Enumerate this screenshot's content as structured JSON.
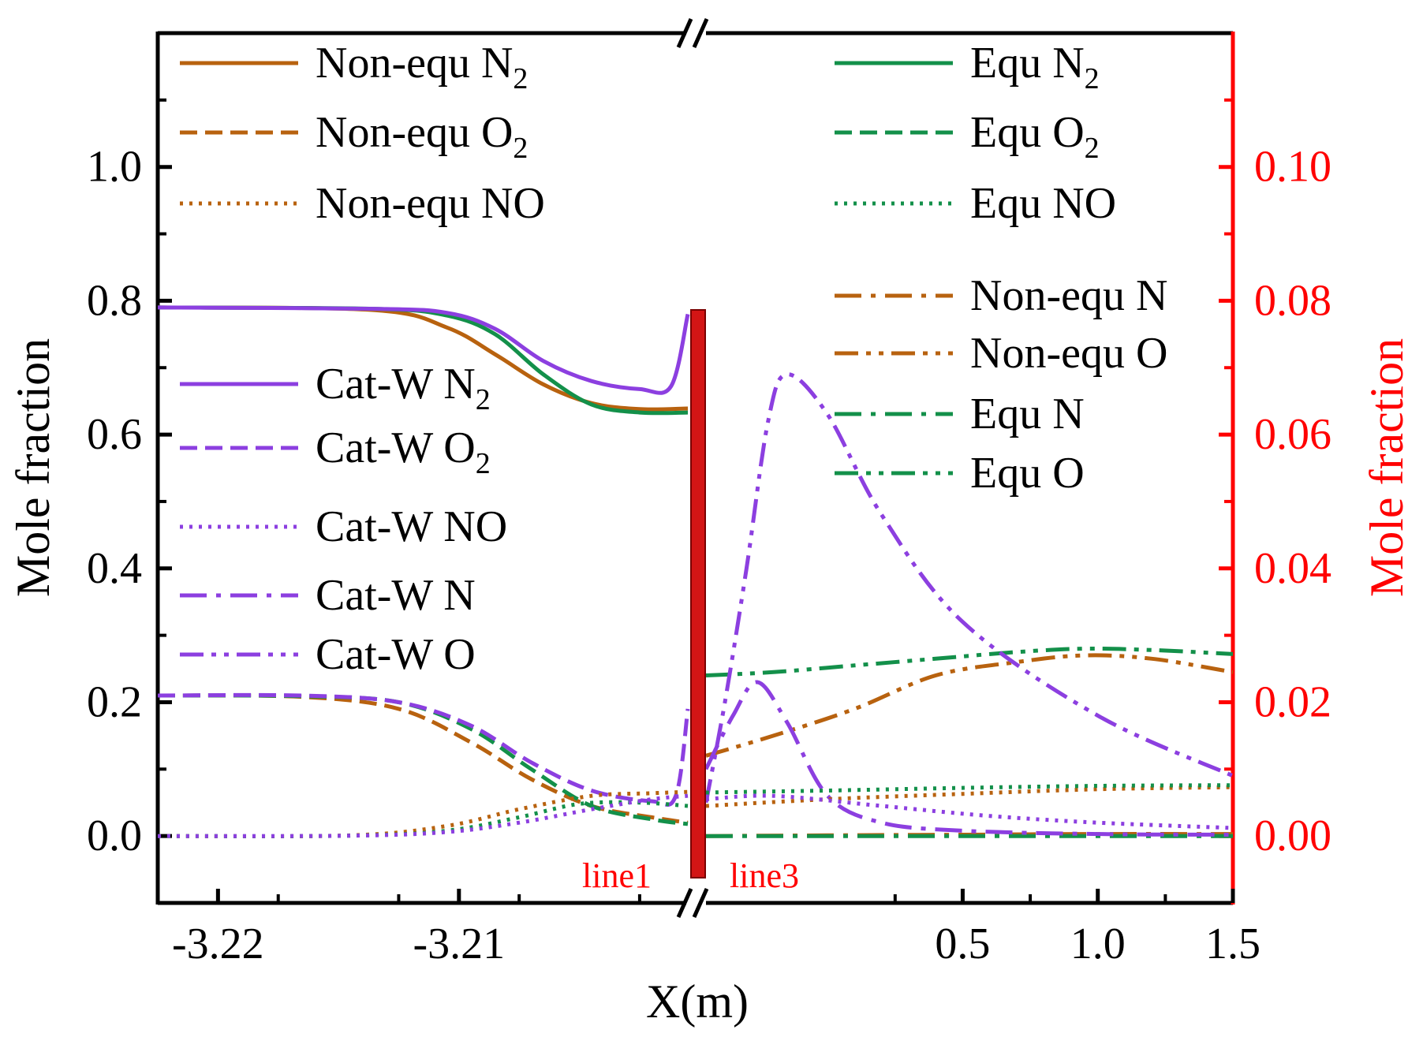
{
  "chart_data": {
    "type": "line",
    "ylabel": "Mole fraction",
    "ylabel_right": "Mole fraction",
    "xlabel": "X(m)",
    "yticks_left": [
      "0.0",
      "0.2",
      "0.4",
      "0.6",
      "0.8",
      "1.0"
    ],
    "yticks_right": [
      "0.00",
      "0.02",
      "0.04",
      "0.06",
      "0.08",
      "0.10"
    ],
    "ylim_left": [
      -0.1,
      1.2
    ],
    "ylim_right": [
      -0.01,
      0.12
    ],
    "xticks_left": [
      "-3.22",
      "-3.21"
    ],
    "xticks_right": [
      "0.5",
      "1.0",
      "1.5"
    ],
    "xlim_left": [
      -3.2225,
      -3.2005
    ],
    "xlim_right": [
      -0.45,
      1.5
    ],
    "annotations": [
      "line1",
      "line3"
    ],
    "legend": {
      "non_equ_n2": {
        "label": "Non-equ N",
        "sub": "2"
      },
      "non_equ_o2": {
        "label": "Non-equ O",
        "sub": "2"
      },
      "non_equ_no": {
        "label": "Non-equ NO",
        "sub": ""
      },
      "cat_w_n2": {
        "label": "Cat-W N",
        "sub": "2"
      },
      "cat_w_o2": {
        "label": "Cat-W O",
        "sub": "2"
      },
      "cat_w_no": {
        "label": "Cat-W NO",
        "sub": ""
      },
      "cat_w_n": {
        "label": "Cat-W N",
        "sub": ""
      },
      "cat_w_o": {
        "label": "Cat-W O",
        "sub": ""
      },
      "equ_n2": {
        "label": "Equ N",
        "sub": "2"
      },
      "equ_o2": {
        "label": "Equ O",
        "sub": "2"
      },
      "equ_no": {
        "label": "Equ NO",
        "sub": ""
      },
      "non_equ_n": {
        "label": "Non-equ N",
        "sub": ""
      },
      "non_equ_o": {
        "label": "Non-equ O",
        "sub": ""
      },
      "equ_n": {
        "label": "Equ N",
        "sub": ""
      },
      "equ_o": {
        "label": "Equ O",
        "sub": ""
      }
    },
    "colors": {
      "non_equ": "#b8620f",
      "equ": "#13904a",
      "cat_w": "#8c3fe0",
      "wall": "#d31515",
      "axis_right": "#ff0000"
    },
    "series_left_panel": [
      {
        "name": "Non-equ N2",
        "color": "#b8620f",
        "dash": "solid",
        "x": [
          -3.2225,
          -3.2135,
          -3.2105,
          -3.2085,
          -3.2065,
          -3.2045,
          -3.2025,
          -3.2005
        ],
        "y": [
          0.79,
          0.786,
          0.76,
          0.72,
          0.675,
          0.647,
          0.638,
          0.639
        ]
      },
      {
        "name": "Equ N2",
        "color": "#13904a",
        "dash": "solid",
        "x": [
          -3.2225,
          -3.2135,
          -3.2105,
          -3.2085,
          -3.2065,
          -3.2045,
          -3.2025,
          -3.2005
        ],
        "y": [
          0.79,
          0.788,
          0.778,
          0.75,
          0.69,
          0.645,
          0.633,
          0.633
        ]
      },
      {
        "name": "Cat-W N2",
        "color": "#8c3fe0",
        "dash": "solid",
        "x": [
          -3.2225,
          -3.2135,
          -3.2105,
          -3.2085,
          -3.2065,
          -3.2045,
          -3.2025,
          -3.2012,
          -3.2005
        ],
        "y": [
          0.79,
          0.788,
          0.782,
          0.758,
          0.71,
          0.68,
          0.668,
          0.672,
          0.78
        ]
      },
      {
        "name": "Non-equ O2",
        "color": "#b8620f",
        "dash": "dash",
        "x": [
          -3.2225,
          -3.2165,
          -3.2125,
          -3.2095,
          -3.207,
          -3.2045,
          -3.202,
          -3.2005
        ],
        "y": [
          0.21,
          0.208,
          0.19,
          0.14,
          0.085,
          0.045,
          0.028,
          0.02
        ]
      },
      {
        "name": "Equ O2",
        "color": "#13904a",
        "dash": "dash",
        "x": [
          -3.2225,
          -3.2165,
          -3.2125,
          -3.2095,
          -3.207,
          -3.2045,
          -3.202,
          -3.2005
        ],
        "y": [
          0.21,
          0.209,
          0.2,
          0.16,
          0.1,
          0.045,
          0.025,
          0.018
        ]
      },
      {
        "name": "Cat-W O2",
        "color": "#8c3fe0",
        "dash": "dash",
        "x": [
          -3.2225,
          -3.2165,
          -3.2125,
          -3.2095,
          -3.207,
          -3.2045,
          -3.202,
          -3.201,
          -3.2005
        ],
        "y": [
          0.21,
          0.21,
          0.2,
          0.165,
          0.11,
          0.068,
          0.052,
          0.06,
          0.19
        ]
      },
      {
        "name": "Non-equ NO",
        "color": "#b8620f",
        "dash": "dot",
        "x": [
          -3.2225,
          -3.2145,
          -3.2105,
          -3.2075,
          -3.2045,
          -3.202,
          -3.2005
        ],
        "y": [
          0,
          0.001,
          0.015,
          0.04,
          0.06,
          0.064,
          0.066
        ]
      },
      {
        "name": "Equ NO",
        "color": "#13904a",
        "dash": "dot",
        "x": [
          -3.2225,
          -3.2145,
          -3.2105,
          -3.2075,
          -3.205,
          -3.2025,
          -3.2005
        ],
        "y": [
          0,
          0.0005,
          0.008,
          0.028,
          0.048,
          0.05,
          0.045
        ]
      },
      {
        "name": "Cat-W NO",
        "color": "#8c3fe0",
        "dash": "dot",
        "x": [
          -3.2225,
          -3.2145,
          -3.2105,
          -3.2075,
          -3.2045,
          -3.202,
          -3.2005
        ],
        "y": [
          0,
          0.0005,
          0.006,
          0.02,
          0.04,
          0.055,
          0.06
        ]
      }
    ],
    "series_right_panel": [
      {
        "name": "Non-equ N",
        "axis": "right",
        "color": "#b8620f",
        "dash": "dashdot",
        "x": [
          -0.45,
          0,
          0.5,
          1.0,
          1.5
        ],
        "y": [
          0.0,
          0.0001,
          0.0002,
          0.0003,
          0.0003
        ]
      },
      {
        "name": "Equ N",
        "axis": "right",
        "color": "#13904a",
        "dash": "dashdot",
        "x": [
          -0.45,
          0,
          0.5,
          1.0,
          1.5
        ],
        "y": [
          0.0,
          0.0,
          0.0,
          0.0,
          0.0
        ]
      },
      {
        "name": "Non-equ O",
        "axis": "right",
        "color": "#b8620f",
        "dash": "dashdotdot",
        "x": [
          -0.45,
          -0.2,
          0.1,
          0.4,
          0.7,
          0.95,
          1.2,
          1.5
        ],
        "y": [
          0.012,
          0.015,
          0.019,
          0.024,
          0.026,
          0.027,
          0.0265,
          0.0245
        ]
      },
      {
        "name": "Equ O",
        "axis": "right",
        "color": "#13904a",
        "dash": "dashdotdot",
        "x": [
          -0.45,
          -0.2,
          0.1,
          0.4,
          0.7,
          0.95,
          1.2,
          1.5
        ],
        "y": [
          0.024,
          0.0245,
          0.0255,
          0.0265,
          0.0275,
          0.028,
          0.0278,
          0.0272
        ]
      },
      {
        "name": "Cat-W N",
        "axis": "right",
        "color": "#8c3fe0",
        "dash": "dashdot",
        "x": [
          -0.45,
          -0.35,
          -0.26,
          -0.15,
          0.0,
          0.2,
          0.5,
          1.0,
          1.5
        ],
        "y": [
          0.01,
          0.018,
          0.023,
          0.017,
          0.006,
          0.002,
          0.0008,
          0.0003,
          0.0002
        ]
      },
      {
        "name": "Cat-W O",
        "axis": "right",
        "color": "#8c3fe0",
        "dash": "dashdotdot",
        "x": [
          -0.45,
          -0.38,
          -0.3,
          -0.22,
          -0.15,
          0.0,
          0.2,
          0.5,
          1.0,
          1.5
        ],
        "y": [
          0.005,
          0.02,
          0.04,
          0.062,
          0.069,
          0.063,
          0.048,
          0.032,
          0.018,
          0.009
        ]
      },
      {
        "name": "Non-equ NO",
        "axis": "left",
        "color": "#b8620f",
        "dash": "dot",
        "x": [
          -0.45,
          0,
          0.5,
          1.0,
          1.5
        ],
        "y": [
          0.045,
          0.055,
          0.063,
          0.07,
          0.073
        ]
      },
      {
        "name": "Equ NO",
        "axis": "left",
        "color": "#13904a",
        "dash": "dot",
        "x": [
          -0.45,
          0,
          0.5,
          1.0,
          1.5
        ],
        "y": [
          0.065,
          0.068,
          0.072,
          0.075,
          0.076
        ]
      },
      {
        "name": "Cat-W NO",
        "axis": "left",
        "color": "#8c3fe0",
        "dash": "dot",
        "x": [
          -0.45,
          -0.2,
          0.2,
          0.6,
          1.0,
          1.5
        ],
        "y": [
          0.055,
          0.06,
          0.045,
          0.03,
          0.02,
          0.012
        ]
      }
    ]
  }
}
